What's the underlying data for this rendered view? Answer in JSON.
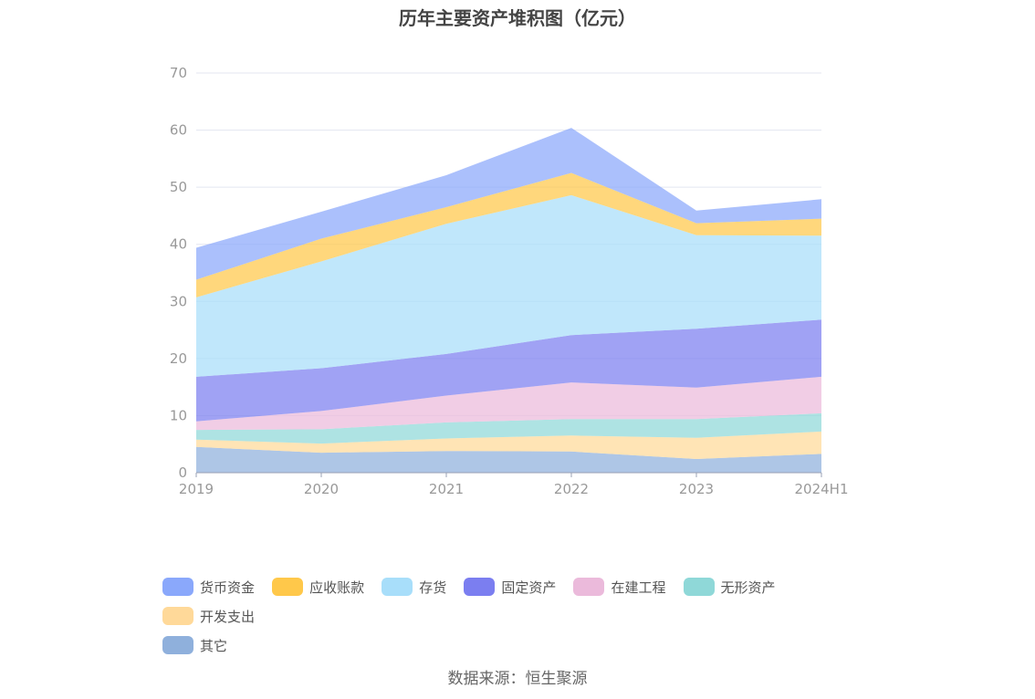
{
  "chart_data": {
    "type": "area",
    "stacked": true,
    "title": "历年主要资产堆积图（亿元）",
    "categories": [
      "2019",
      "2020",
      "2021",
      "2022",
      "2023",
      "2024H1"
    ],
    "y_ticks": [
      "0",
      "10",
      "20",
      "30",
      "40",
      "50",
      "60",
      "70"
    ],
    "ylim": [
      0,
      70
    ],
    "xlabel": "",
    "ylabel": "",
    "grid": true,
    "legend_position": "bottom",
    "series": [
      {
        "name": "其它",
        "color": "#8fb0dc",
        "values": [
          4.5,
          3.5,
          3.8,
          3.7,
          2.4,
          3.3
        ]
      },
      {
        "name": "开发支出",
        "color": "#ffd999",
        "values": [
          1.3,
          1.6,
          2.2,
          2.8,
          3.7,
          3.9
        ]
      },
      {
        "name": "无形资产",
        "color": "#8fd8d8",
        "values": [
          1.7,
          2.5,
          2.8,
          2.9,
          3.3,
          3.2
        ]
      },
      {
        "name": "在建工程",
        "color": "#ebbadb",
        "values": [
          1.5,
          3.2,
          4.7,
          6.4,
          5.5,
          6.4
        ]
      },
      {
        "name": "固定资产",
        "color": "#7b7ef0",
        "values": [
          7.8,
          7.5,
          7.3,
          8.3,
          10.3,
          10.0
        ]
      },
      {
        "name": "存货",
        "color": "#a8defa",
        "values": [
          13.9,
          18.7,
          22.8,
          24.5,
          16.4,
          14.7
        ]
      },
      {
        "name": "应收账款",
        "color": "#ffc84a",
        "values": [
          3.1,
          4.0,
          2.9,
          3.9,
          2.1,
          3.0
        ]
      },
      {
        "name": "货币资金",
        "color": "#8aa8fb",
        "values": [
          5.6,
          4.7,
          5.6,
          7.9,
          2.2,
          3.4
        ]
      }
    ]
  },
  "legend": {
    "items": [
      {
        "label": "货币资金",
        "color": "#8aa8fb"
      },
      {
        "label": "应收账款",
        "color": "#ffc84a"
      },
      {
        "label": "存货",
        "color": "#a8defa"
      },
      {
        "label": "固定资产",
        "color": "#7b7ef0"
      },
      {
        "label": "在建工程",
        "color": "#ebbadb"
      },
      {
        "label": "无形资产",
        "color": "#8fd8d8"
      },
      {
        "label": "开发支出",
        "color": "#ffd999"
      },
      {
        "label": "其它",
        "color": "#8fb0dc"
      }
    ]
  },
  "source": "数据来源：恒生聚源"
}
